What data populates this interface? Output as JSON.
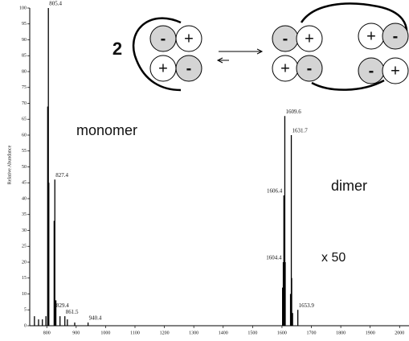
{
  "chart_data": {
    "type": "stick",
    "y_label": "Relative Abundance",
    "xlim": [
      742,
      2032
    ],
    "ylim": [
      0,
      100
    ],
    "xticks": [
      800,
      900,
      1000,
      1100,
      1200,
      1300,
      1400,
      1500,
      1600,
      1700,
      1800,
      1900,
      2000
    ],
    "yticks": [
      0,
      5,
      10,
      15,
      20,
      25,
      30,
      35,
      40,
      45,
      50,
      55,
      60,
      65,
      70,
      75,
      80,
      85,
      90,
      95,
      100
    ],
    "color": "#000000",
    "series": [
      {
        "x": [
          805.4,
          827.4,
          829.4,
          861.5,
          940.4,
          1604.4,
          1606.4,
          1609.6,
          1631.7,
          1653.9
        ],
        "values": [
          100,
          46,
          5,
          3,
          1,
          20,
          41,
          66,
          60,
          5
        ]
      },
      {
        "x": [
          758,
          772,
          785,
          797,
          803,
          807,
          825,
          831,
          845,
          870,
          895,
          1602,
          1608,
          1611,
          1629,
          1633,
          1636
        ],
        "values": [
          3,
          2,
          2,
          3,
          69,
          45,
          33,
          8,
          3,
          2,
          1,
          12,
          40,
          20,
          10,
          15,
          4
        ]
      }
    ],
    "annotations": [
      "monomer",
      "dimer",
      "x 50"
    ]
  },
  "diagram": {
    "multiplier": "2",
    "left": [
      "-",
      "+",
      "+",
      "-"
    ],
    "right_a": [
      "-",
      "+",
      "+",
      "-"
    ],
    "right_b": [
      "+",
      "-",
      "-",
      "+"
    ]
  }
}
